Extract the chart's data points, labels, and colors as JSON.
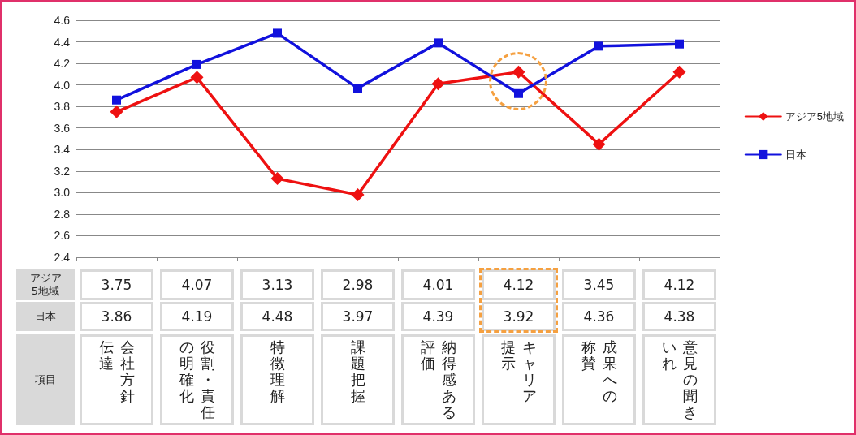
{
  "chart_data": {
    "type": "line",
    "xlabel": "項目",
    "categories": [
      "会社方針伝達",
      "役割・責任の明確化",
      "特徴理解",
      "課題把握",
      "納得感ある評価",
      "キャリア提示",
      "成果への称賛",
      "意見の聞きいれ"
    ],
    "series": [
      {
        "name": "アジア5地域",
        "color": "#ee1111",
        "marker": "diamond",
        "values": [
          3.75,
          4.07,
          3.13,
          2.98,
          4.01,
          4.12,
          3.45,
          4.12
        ]
      },
      {
        "name": "日本",
        "color": "#1111dd",
        "marker": "square",
        "values": [
          3.86,
          4.19,
          4.48,
          3.97,
          4.39,
          3.92,
          4.36,
          4.38
        ]
      }
    ],
    "ylim": [
      2.4,
      4.6
    ],
    "yticks": [
      2.4,
      2.6,
      2.8,
      {
        "value": 3,
        "label": "3.0"
      },
      3.2,
      3.4,
      3.6,
      3.8,
      {
        "value": 4,
        "label": "4.0"
      },
      4.2,
      4.4,
      4.6
    ],
    "grid": "y",
    "legend": "right",
    "data_labels": true,
    "line_style": "solid"
  }
}
